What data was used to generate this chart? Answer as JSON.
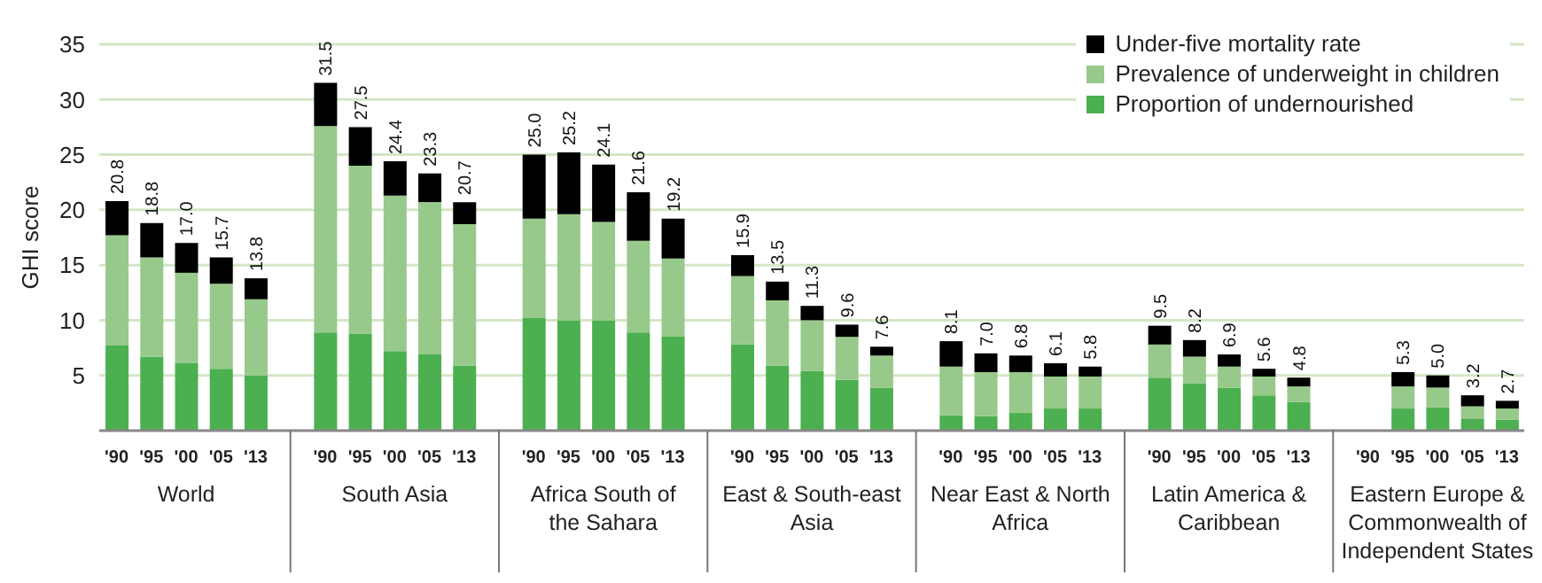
{
  "chart_data": {
    "type": "bar",
    "stacked": true,
    "ylabel": "GHI score",
    "categories": [
      "'90",
      "'95",
      "'00",
      "'05",
      "'13",
      null,
      "'90",
      "'95",
      "'00",
      "'05",
      "'13",
      null,
      "'90",
      "'95",
      "'00",
      "'05",
      "'13",
      null,
      "'90",
      "'95",
      "'00",
      "'05",
      "'13",
      null,
      "'90",
      "'95",
      "'00",
      "'05",
      "'13",
      null,
      "'90",
      "'95",
      "'00",
      "'05",
      "'13",
      null,
      "'90",
      "'95",
      "'00",
      "'05",
      "'13"
    ],
    "series": [
      {
        "name": "Proportion of undernourished",
        "color": "#4caf50",
        "values": [
          7.7,
          6.7,
          6.1,
          5.6,
          5.0,
          null,
          8.9,
          8.8,
          7.2,
          6.9,
          5.9,
          null,
          10.2,
          10.0,
          10.0,
          8.9,
          8.5,
          null,
          7.8,
          5.9,
          5.4,
          4.6,
          3.9,
          null,
          1.4,
          1.3,
          1.6,
          2.0,
          2.0,
          null,
          4.8,
          4.3,
          3.9,
          3.2,
          2.6,
          null,
          null,
          2.0,
          2.1,
          1.1,
          1.0
        ]
      },
      {
        "name": "Prevalence of underweight in children",
        "color": "#97c98b",
        "values": [
          10.0,
          9.0,
          8.2,
          7.7,
          6.9,
          null,
          18.7,
          15.2,
          14.1,
          13.8,
          12.8,
          null,
          9.0,
          9.6,
          8.9,
          8.3,
          7.1,
          null,
          6.2,
          5.9,
          4.6,
          3.9,
          2.9,
          null,
          4.4,
          4.0,
          3.7,
          2.9,
          2.9,
          null,
          3.0,
          2.4,
          1.9,
          1.7,
          1.4,
          null,
          null,
          2.0,
          1.8,
          1.1,
          1.0
        ]
      },
      {
        "name": "Under-five mortality rate",
        "color": "#000000",
        "values": [
          3.1,
          3.1,
          2.7,
          2.4,
          1.9,
          null,
          3.9,
          3.5,
          3.1,
          2.6,
          2.0,
          null,
          5.8,
          5.6,
          5.2,
          4.4,
          3.6,
          null,
          1.9,
          1.7,
          1.3,
          1.1,
          0.8,
          null,
          2.3,
          1.7,
          1.5,
          1.2,
          0.9,
          null,
          1.7,
          1.5,
          1.1,
          0.7,
          0.8,
          null,
          null,
          1.3,
          1.1,
          1.0,
          0.7
        ]
      }
    ],
    "totals": [
      "20.8",
      "18.8",
      "17.0",
      "15.7",
      "13.8",
      null,
      "31.5",
      "27.5",
      "24.4",
      "23.3",
      "20.7",
      null,
      "25.0",
      "25.2",
      "24.1",
      "21.6",
      "19.2",
      null,
      "15.9",
      "13.5",
      "11.3",
      "9.6",
      "7.6",
      null,
      "8.1",
      "7.0",
      "6.8",
      "6.1",
      "5.8",
      null,
      "9.5",
      "8.2",
      "6.9",
      "5.6",
      "4.8",
      null,
      null,
      "5.3",
      "5.0",
      "3.2",
      "2.7"
    ],
    "annotations": [
      "World",
      "South Asia",
      "Africa South of the Sahara",
      "East & South-east Asia",
      "Near East & North Africa",
      "Latin America & Caribbean",
      "Eastern Europe & Commonwealth of Independent States"
    ],
    "ylim": [
      0,
      35
    ],
    "yticks": [
      5,
      10,
      15,
      20,
      25,
      30,
      35
    ],
    "grid": "y",
    "legend": "top right"
  }
}
